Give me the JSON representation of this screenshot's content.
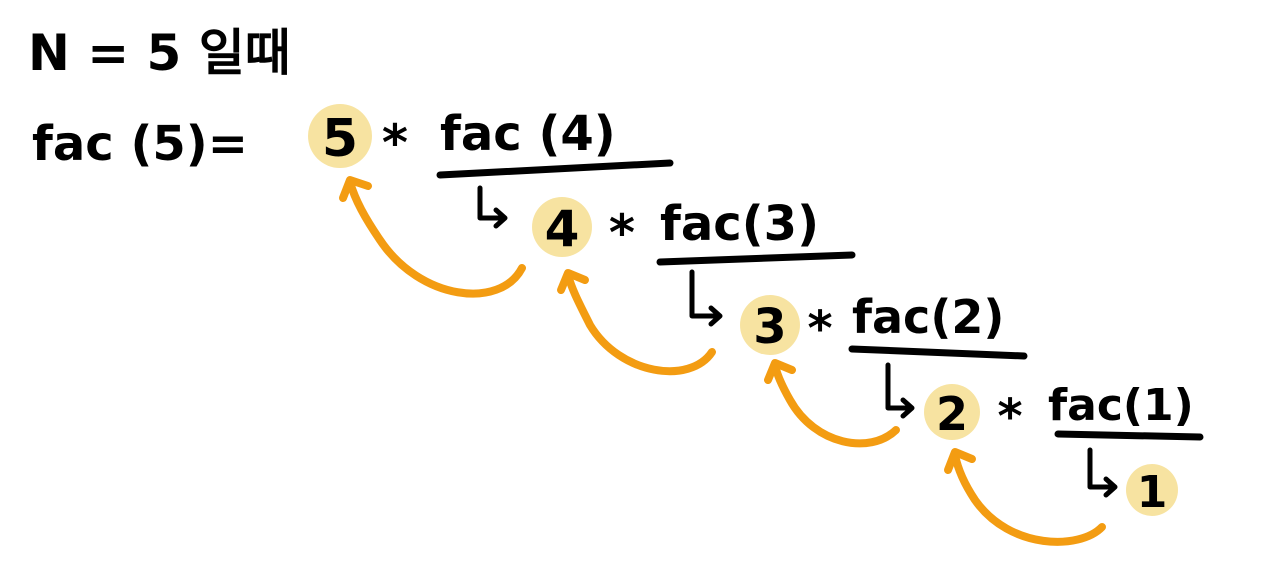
{
  "title": "N = 5 일때",
  "expression_prefix": "fac (5)=",
  "levels": [
    {
      "value": "5",
      "operator": "*",
      "call": "fac (4)"
    },
    {
      "value": "4",
      "operator": "*",
      "call": "fac(3)"
    },
    {
      "value": "3",
      "operator": "*",
      "call": "fac(2)"
    },
    {
      "value": "2",
      "operator": "*",
      "call": "fac(1)"
    },
    {
      "value": "1",
      "operator": "",
      "call": ""
    }
  ],
  "colors": {
    "highlight": "#F7E3A1",
    "arrow": "#F39C12",
    "ink": "#000000"
  }
}
